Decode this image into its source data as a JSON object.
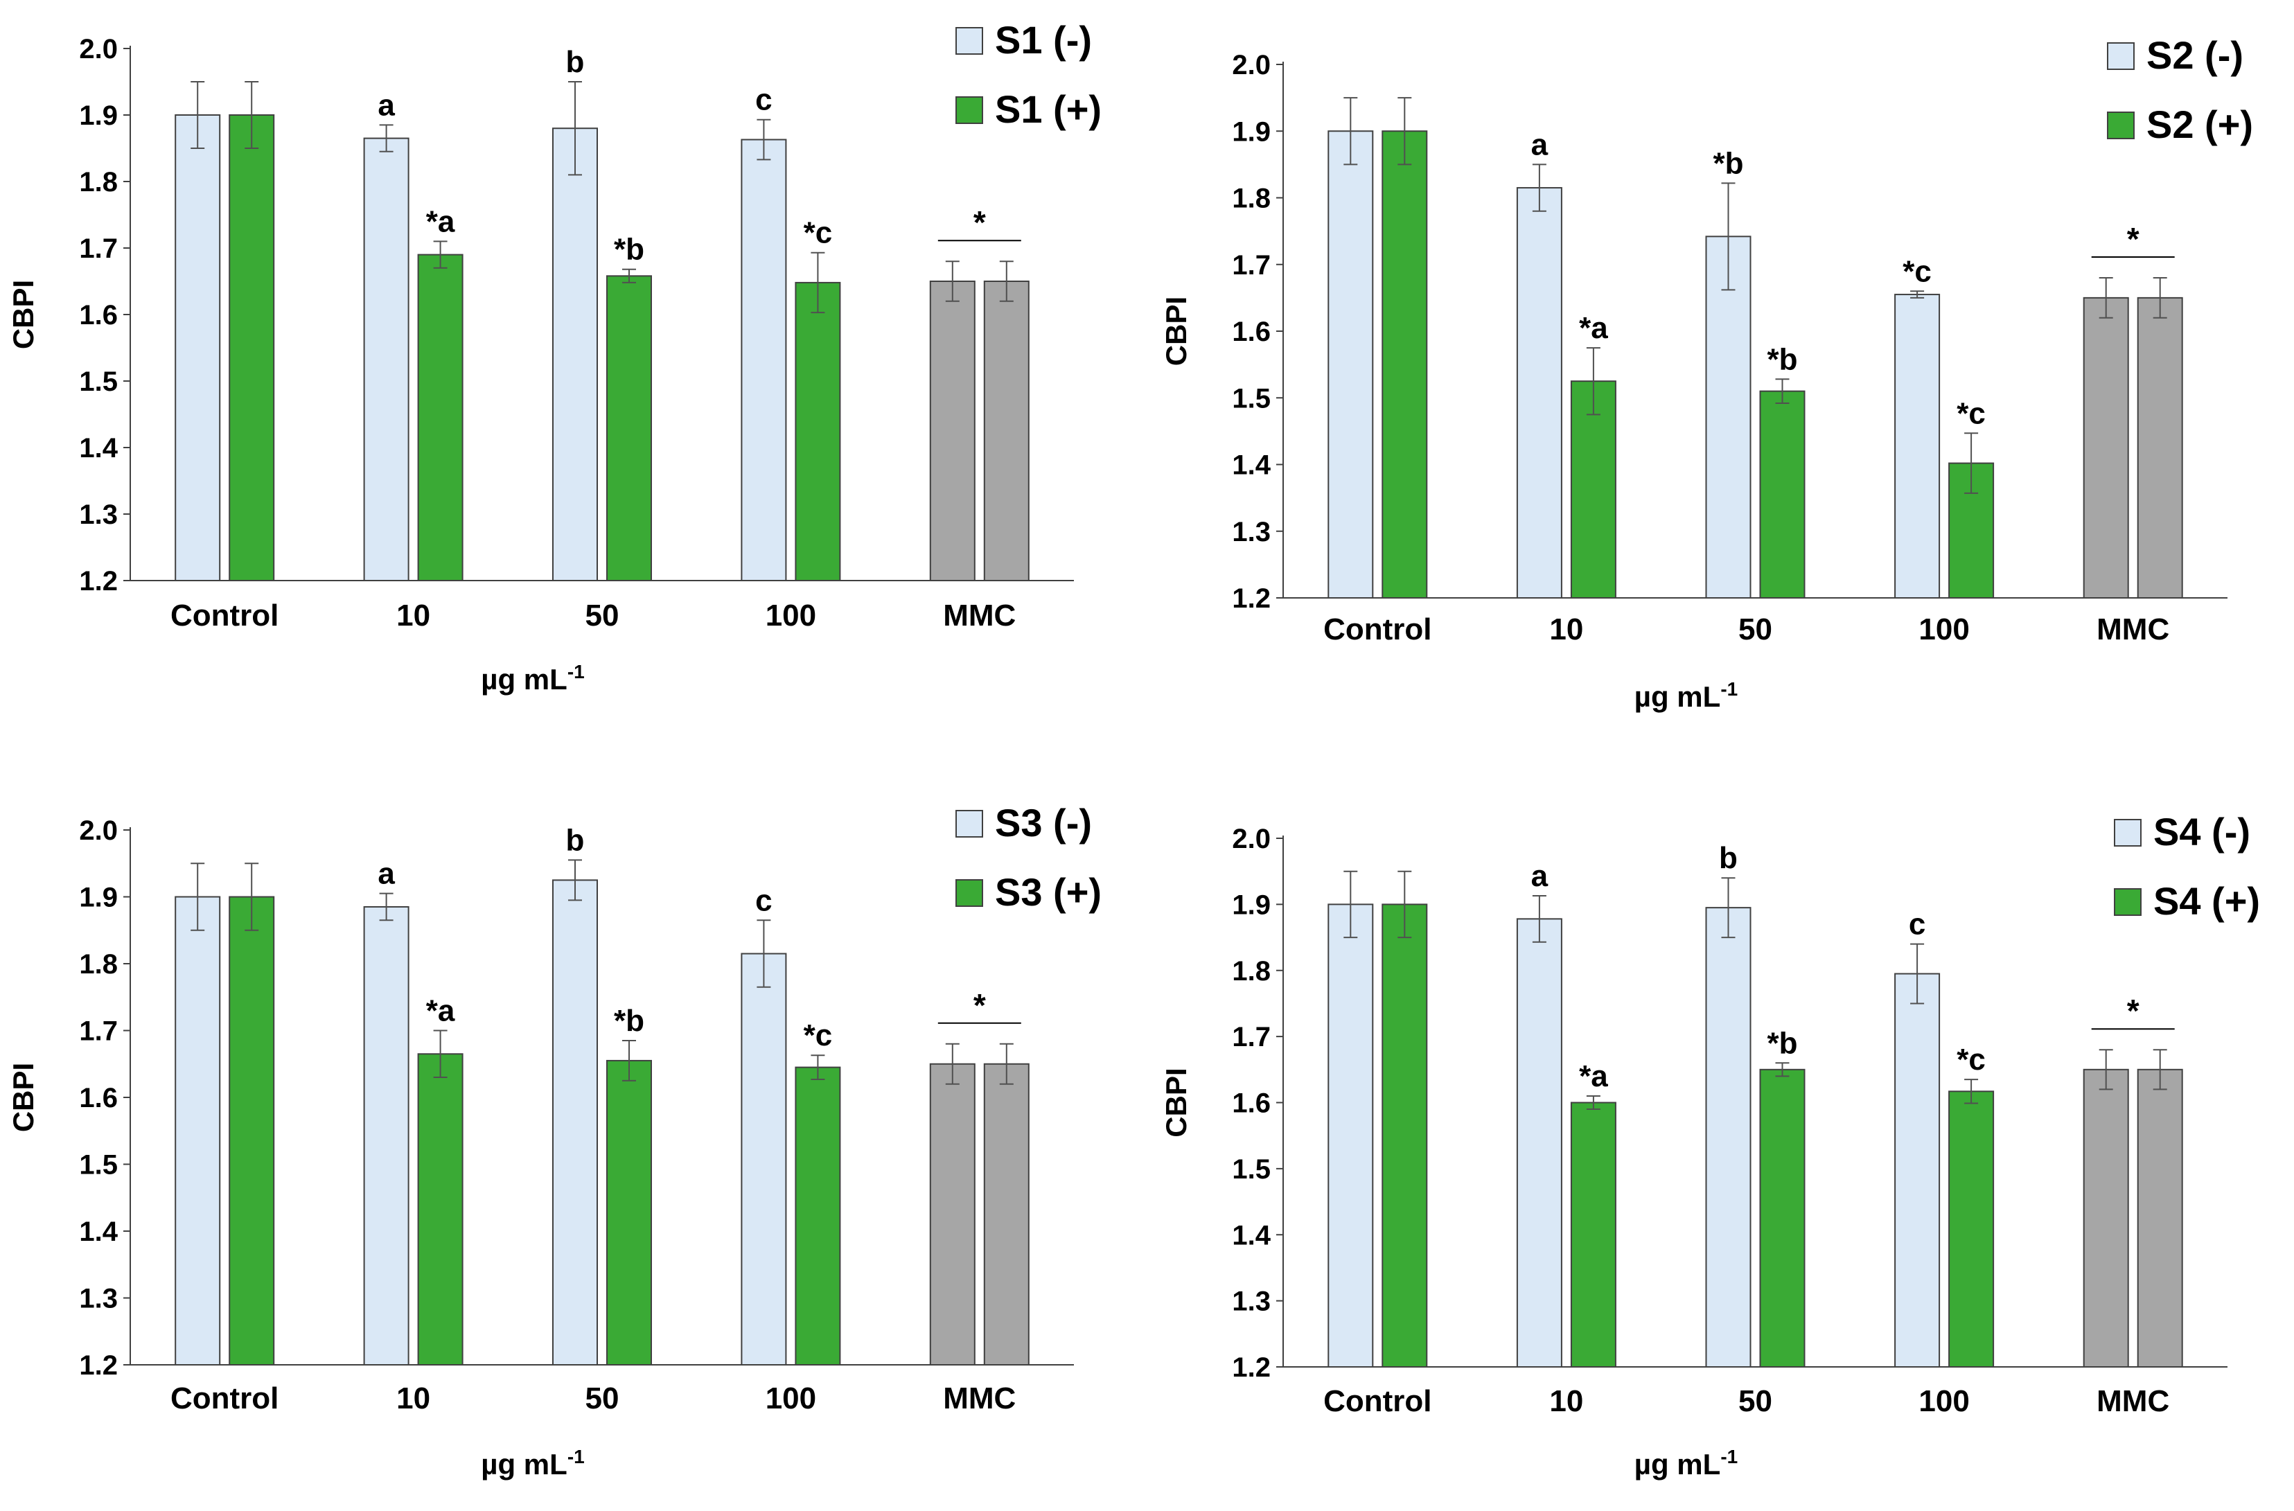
{
  "figure": {
    "title": ""
  },
  "colors": {
    "minus": "#dae8f6",
    "plus": "#3aaa35",
    "mmc": "#a6a6a6",
    "bar_stroke": "#404040",
    "axis": "#404040",
    "error_bar": "#505050"
  },
  "chart_data": [
    {
      "type": "bar",
      "panel": "S1",
      "ylabel": "CBPI",
      "xlabel_base": "µg mL",
      "xlabel_sup": "-1",
      "ylim": [
        1.2,
        2.0
      ],
      "yticks": [
        "1.2",
        "1.3",
        "1.4",
        "1.5",
        "1.6",
        "1.7",
        "1.8",
        "1.9",
        "2.0"
      ],
      "categories": [
        "Control",
        "10",
        "50",
        "100",
        "MMC"
      ],
      "series": [
        {
          "name": "S1 (-)",
          "values": [
            1.9,
            1.865,
            1.88,
            1.863,
            1.65
          ],
          "errors": [
            0.05,
            0.02,
            0.07,
            0.03,
            0.03
          ],
          "labels": [
            "",
            "a",
            "b",
            "c",
            ""
          ]
        },
        {
          "name": "S1 (+)",
          "values": [
            1.9,
            1.69,
            1.658,
            1.648,
            1.65
          ],
          "errors": [
            0.05,
            0.02,
            0.01,
            0.045,
            0.03
          ],
          "labels": [
            "",
            "*a",
            "*b",
            "*c",
            ""
          ]
        }
      ],
      "mmc_annotation": "*"
    },
    {
      "type": "bar",
      "panel": "S2",
      "ylabel": "CBPI",
      "xlabel_base": "µg mL",
      "xlabel_sup": "-1",
      "ylim": [
        1.2,
        2.0
      ],
      "yticks": [
        "1.2",
        "1.3",
        "1.4",
        "1.5",
        "1.6",
        "1.7",
        "1.8",
        "1.9",
        "2.0"
      ],
      "categories": [
        "Control",
        "10",
        "50",
        "100",
        "MMC"
      ],
      "series": [
        {
          "name": "S2 (-)",
          "values": [
            1.9,
            1.815,
            1.742,
            1.655,
            1.65
          ],
          "errors": [
            0.05,
            0.035,
            0.08,
            0.005,
            0.03
          ],
          "labels": [
            "",
            "a",
            "*b",
            "*c",
            ""
          ]
        },
        {
          "name": "S2 (+)",
          "values": [
            1.9,
            1.525,
            1.51,
            1.402,
            1.65
          ],
          "errors": [
            0.05,
            0.05,
            0.018,
            0.045,
            0.03
          ],
          "labels": [
            "",
            "*a",
            "*b",
            "*c",
            ""
          ]
        }
      ],
      "mmc_annotation": "*"
    },
    {
      "type": "bar",
      "panel": "S3",
      "ylabel": "CBPI",
      "xlabel_base": "µg mL",
      "xlabel_sup": "-1",
      "ylim": [
        1.2,
        2.0
      ],
      "yticks": [
        "1.2",
        "1.3",
        "1.4",
        "1.5",
        "1.6",
        "1.7",
        "1.8",
        "1.9",
        "2.0"
      ],
      "categories": [
        "Control",
        "10",
        "50",
        "100",
        "MMC"
      ],
      "series": [
        {
          "name": "S3 (-)",
          "values": [
            1.9,
            1.885,
            1.925,
            1.815,
            1.65
          ],
          "errors": [
            0.05,
            0.02,
            0.03,
            0.05,
            0.03
          ],
          "labels": [
            "",
            "a",
            "b",
            "c",
            ""
          ]
        },
        {
          "name": "S3 (+)",
          "values": [
            1.9,
            1.665,
            1.655,
            1.645,
            1.65
          ],
          "errors": [
            0.05,
            0.035,
            0.03,
            0.018,
            0.03
          ],
          "labels": [
            "",
            "*a",
            "*b",
            "*c",
            ""
          ]
        }
      ],
      "mmc_annotation": "*"
    },
    {
      "type": "bar",
      "panel": "S4",
      "ylabel": "CBPI",
      "xlabel_base": "µg mL",
      "xlabel_sup": "-1",
      "ylim": [
        1.2,
        2.0
      ],
      "yticks": [
        "1.2",
        "1.3",
        "1.4",
        "1.5",
        "1.6",
        "1.7",
        "1.8",
        "1.9",
        "2.0"
      ],
      "categories": [
        "Control",
        "10",
        "50",
        "100",
        "MMC"
      ],
      "series": [
        {
          "name": "S4 (-)",
          "values": [
            1.9,
            1.878,
            1.895,
            1.795,
            1.65
          ],
          "errors": [
            0.05,
            0.035,
            0.045,
            0.045,
            0.03
          ],
          "labels": [
            "",
            "a",
            "b",
            "c",
            ""
          ]
        },
        {
          "name": "S4 (+)",
          "values": [
            1.9,
            1.6,
            1.65,
            1.617,
            1.65
          ],
          "errors": [
            0.05,
            0.01,
            0.01,
            0.018,
            0.03
          ],
          "labels": [
            "",
            "*a",
            "*b",
            "*c",
            ""
          ]
        }
      ],
      "mmc_annotation": "*"
    }
  ]
}
